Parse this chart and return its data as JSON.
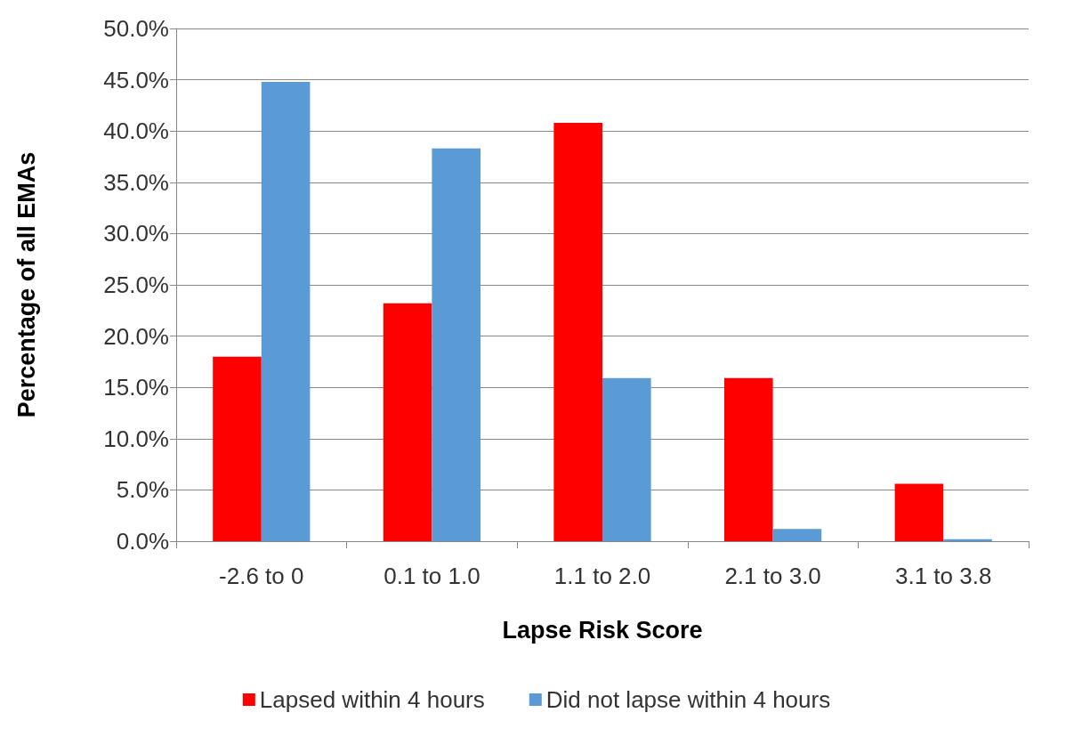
{
  "chart_data": {
    "type": "bar",
    "xlabel": "Lapse Risk Score",
    "ylabel": "Percentage of all EMAs",
    "categories": [
      "-2.6 to 0",
      "0.1 to 1.0",
      "1.1 to 2.0",
      "2.1 to 3.0",
      "3.1 to 3.8"
    ],
    "series": [
      {
        "name": "Lapsed within 4 hours",
        "color": "#ff0000",
        "values": [
          18.0,
          23.2,
          40.8,
          15.9,
          5.6
        ]
      },
      {
        "name": "Did not lapse within 4 hours",
        "color": "#5b9bd5",
        "values": [
          44.8,
          38.3,
          15.9,
          1.2,
          0.2
        ]
      }
    ],
    "ylim": [
      0,
      50
    ],
    "yticks": [
      {
        "value": 0,
        "label": "0.0%"
      },
      {
        "value": 5,
        "label": "5.0%"
      },
      {
        "value": 10,
        "label": "10.0%"
      },
      {
        "value": 15,
        "label": "15.0%"
      },
      {
        "value": 20,
        "label": "20.0%"
      },
      {
        "value": 25,
        "label": "25.0%"
      },
      {
        "value": 30,
        "label": "30.0%"
      },
      {
        "value": 35,
        "label": "35.0%"
      },
      {
        "value": 40,
        "label": "40.0%"
      },
      {
        "value": 45,
        "label": "45.0%"
      },
      {
        "value": 50,
        "label": "50.0%"
      }
    ],
    "grid": "y",
    "legend": "bottom"
  }
}
